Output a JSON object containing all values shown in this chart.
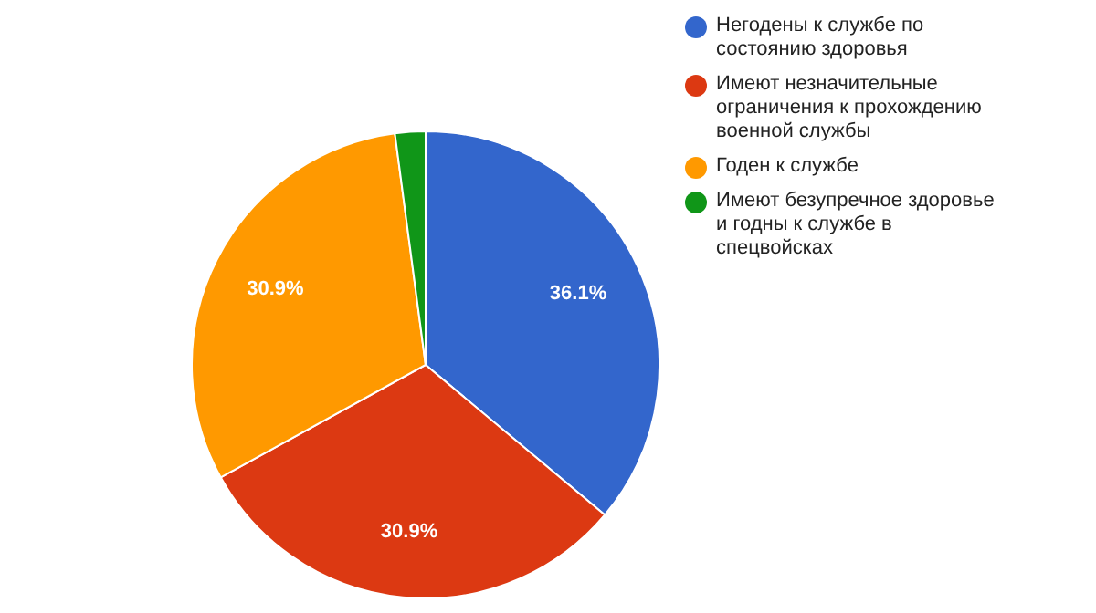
{
  "chart_data": {
    "type": "pie",
    "categories": [
      "Негодены к службе по состоянию здоровья",
      "Имеют незначительные ограничения к прохождению военной службы",
      "Годен к службе",
      "Имеют безупречное здоровье и годны к службе в спецвойсках"
    ],
    "values": [
      36.1,
      30.9,
      30.9,
      2.1
    ],
    "colors": [
      "#3366cc",
      "#dc3912",
      "#ff9900",
      "#109618"
    ],
    "value_labels": [
      "36.1%",
      "30.9%",
      "30.9%",
      null
    ],
    "legend": "top right"
  }
}
